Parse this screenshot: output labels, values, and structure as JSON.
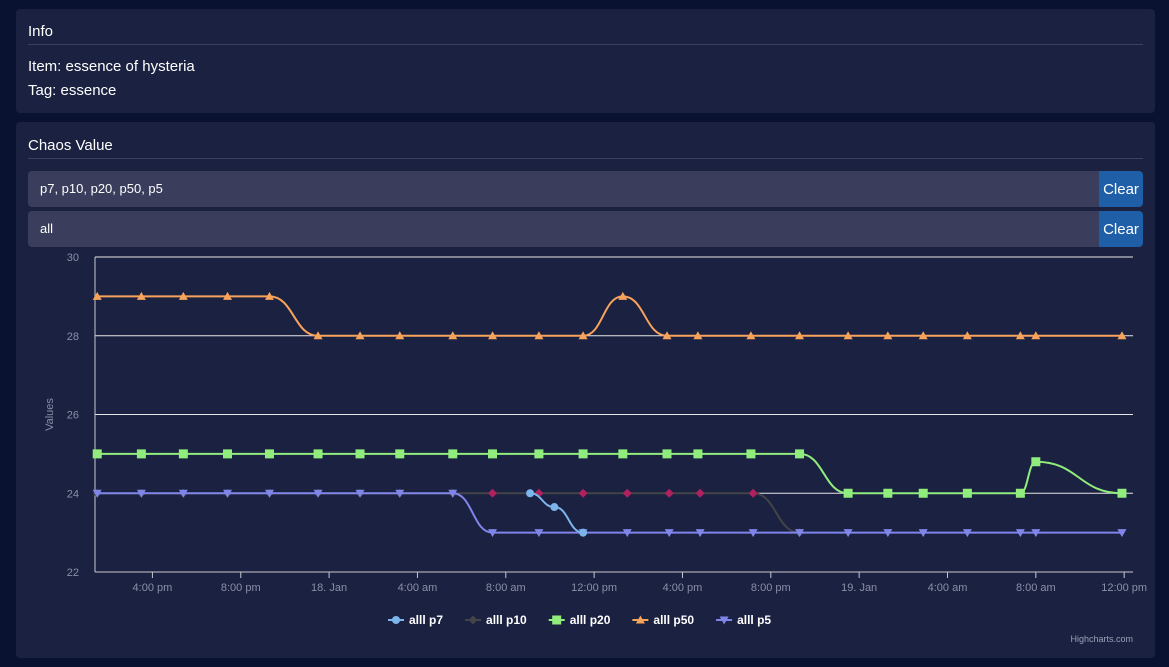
{
  "info": {
    "title": "Info",
    "item_line": "Item: essence of hysteria",
    "tag_line": "Tag: essence"
  },
  "chaos": {
    "title": "Chaos Value",
    "filters": [
      {
        "value": "p7, p10, p20, p50, p5",
        "clear_label": "Clear"
      },
      {
        "value": "all",
        "clear_label": "Clear"
      }
    ]
  },
  "chart_data": {
    "type": "line",
    "title": "",
    "xlabel": "",
    "ylabel": "Values",
    "ylim": [
      22,
      30
    ],
    "yticks": [
      "22",
      "24",
      "26",
      "28",
      "30"
    ],
    "xticks": [
      "4:00 pm",
      "8:00 pm",
      "18. Jan",
      "4:00 am",
      "8:00 am",
      "12:00 pm",
      "4:00 pm",
      "8:00 pm",
      "19. Jan",
      "4:00 am",
      "8:00 am",
      "12:00 pm"
    ],
    "x_hours_range": [
      13.4,
      60.4
    ],
    "gridlines": true,
    "legend_position": "bottom-center",
    "credit": "Highcharts.com",
    "series": [
      {
        "name": "alll p7",
        "color": "#7cb5ec",
        "marker": "circle",
        "x": [
          33.1,
          34.2,
          35.5
        ],
        "y": [
          24,
          23.65,
          23
        ]
      },
      {
        "name": "alll p10",
        "color": "#434348",
        "marker": "diamond",
        "x": [
          13.5,
          15.5,
          17.4,
          19.4,
          21.3,
          23.5,
          25.4,
          27.2,
          29.6,
          31.4,
          33.5,
          35.5,
          37.5,
          39.4,
          40.8,
          43.2,
          45.3
        ],
        "y": [
          24,
          24,
          24,
          24,
          24,
          24,
          24,
          24,
          24,
          24,
          24,
          24,
          24,
          24,
          24,
          24,
          23
        ],
        "marker_colors": {
          "31.4": "#b0215f",
          "33.5": "#b0215f",
          "35.5": "#b0215f",
          "37.5": "#b0215f",
          "39.4": "#b0215f",
          "40.8": "#b0215f",
          "43.2": "#b0215f"
        }
      },
      {
        "name": "alll p20",
        "color": "#90ed7d",
        "marker": "square",
        "x": [
          13.5,
          15.5,
          17.4,
          19.4,
          21.3,
          23.5,
          25.4,
          27.2,
          29.6,
          31.4,
          33.5,
          35.5,
          37.3,
          39.3,
          40.7,
          43.1,
          45.3,
          47.5,
          49.3,
          50.9,
          52.9,
          55.3,
          56.0,
          59.9
        ],
        "y": [
          25,
          25,
          25,
          25,
          25,
          25,
          25,
          25,
          25,
          25,
          25,
          25,
          25,
          25,
          25,
          25,
          25,
          24,
          24,
          24,
          24,
          24,
          24.8,
          24
        ]
      },
      {
        "name": "alll p50",
        "color": "#f7a35c",
        "marker": "triangle",
        "x": [
          13.5,
          15.5,
          17.4,
          19.4,
          21.3,
          23.5,
          25.4,
          27.2,
          29.6,
          31.4,
          33.5,
          35.5,
          37.3,
          39.3,
          40.7,
          43.1,
          45.3,
          47.5,
          49.3,
          50.9,
          52.9,
          55.3,
          56.0,
          59.9
        ],
        "y": [
          29,
          29,
          29,
          29,
          29,
          28,
          28,
          28,
          28,
          28,
          28,
          28,
          29,
          28,
          28,
          28,
          28,
          28,
          28,
          28,
          28,
          28,
          28,
          28
        ]
      },
      {
        "name": "alll p5",
        "color": "#8085e9",
        "marker": "triangle-down",
        "x": [
          13.5,
          15.5,
          17.4,
          19.4,
          21.3,
          23.5,
          25.4,
          27.2,
          29.6,
          31.4,
          33.5,
          35.5,
          37.5,
          39.4,
          40.8,
          43.2,
          45.3,
          47.5,
          49.3,
          50.9,
          52.9,
          55.3,
          56.0,
          59.9
        ],
        "y": [
          24,
          24,
          24,
          24,
          24,
          24,
          24,
          24,
          24,
          23,
          23,
          23,
          23,
          23,
          23,
          23,
          23,
          23,
          23,
          23,
          23,
          23,
          23,
          23
        ]
      }
    ]
  }
}
